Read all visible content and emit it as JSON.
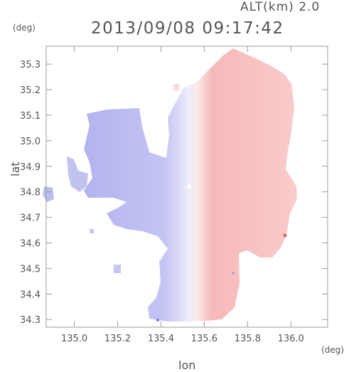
{
  "header": {
    "altitude_label": "ALT(km) 2.0",
    "datetime": "2013/09/08 09:17:42"
  },
  "axes": {
    "y_unit": "(deg)",
    "x_unit": "(deg)",
    "y_label": "lat",
    "x_label": "lon",
    "x_ticks": [
      "135.0",
      "135.2",
      "135.4",
      "135.6",
      "135.8",
      "136.0"
    ],
    "y_ticks": [
      "34.3",
      "34.4",
      "34.5",
      "34.6",
      "34.7",
      "34.8",
      "34.9",
      "35.0",
      "35.1",
      "35.2",
      "35.3"
    ],
    "x_range": [
      134.87,
      136.17
    ],
    "y_range": [
      34.27,
      35.37
    ]
  },
  "colors": {
    "approaching": "#b4b4f0",
    "receding": "#f7b3b3",
    "axis": "#999999"
  },
  "chart_data": {
    "type": "heatmap",
    "x_range": [
      134.87,
      136.17
    ],
    "y_range": [
      34.27,
      35.37
    ],
    "center": {
      "lon": 135.53,
      "lat": 34.82
    }
  }
}
